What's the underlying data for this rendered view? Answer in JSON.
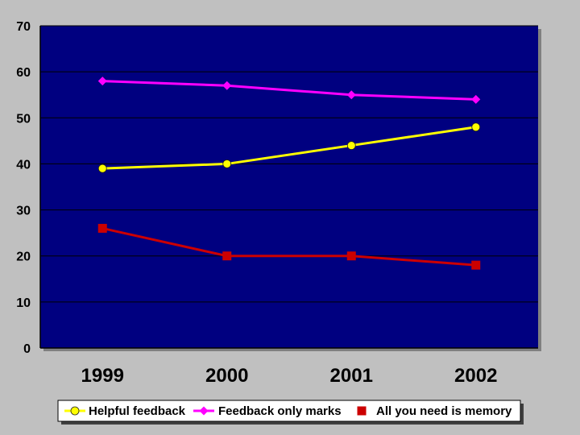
{
  "chart_data": {
    "type": "line",
    "categories": [
      "1999",
      "2000",
      "2001",
      "2002"
    ],
    "series": [
      {
        "name": "Helpful feedback",
        "values": [
          39,
          40,
          44,
          48
        ],
        "color": "#ffff00",
        "marker": "circle"
      },
      {
        "name": "Feedback only marks",
        "values": [
          58,
          57,
          55,
          54
        ],
        "color": "#ff00ff",
        "marker": "diamond"
      },
      {
        "name": "All you need is memory",
        "values": [
          26,
          20,
          20,
          18
        ],
        "color": "#cc0000",
        "marker": "square"
      }
    ],
    "ylim": [
      0,
      70
    ],
    "yticks": [
      "0",
      "10",
      "20",
      "30",
      "40",
      "50",
      "60",
      "70"
    ],
    "grid": true,
    "legend": "bottom",
    "plot_background": "#000080"
  }
}
